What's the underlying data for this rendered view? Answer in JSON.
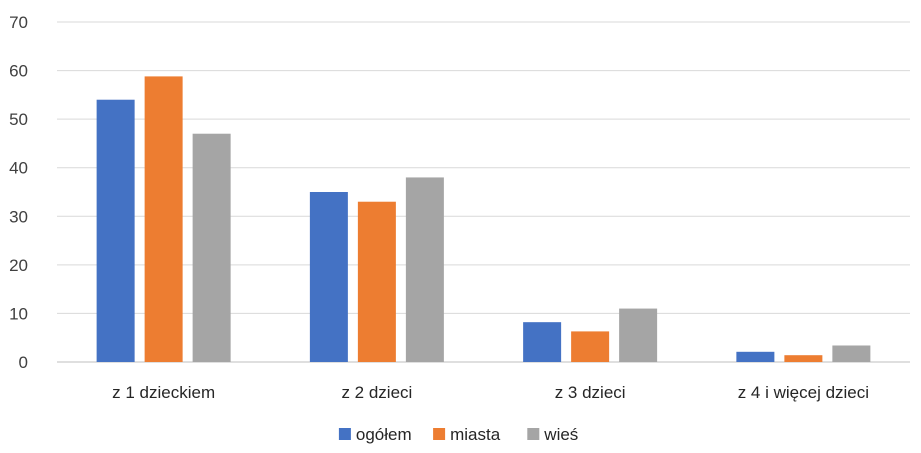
{
  "chart_data": {
    "type": "bar",
    "categories": [
      "z 1 dzieckiem",
      "z 2 dzieci",
      "z 3 dzieci",
      "z 4 i więcej dzieci"
    ],
    "series": [
      {
        "name": "ogółem",
        "values": [
          54,
          35,
          8.2,
          2.1
        ],
        "color": "#4472C4"
      },
      {
        "name": "miasta",
        "values": [
          58.8,
          33,
          6.3,
          1.4
        ],
        "color": "#ED7D31"
      },
      {
        "name": "wieś",
        "values": [
          47,
          38,
          11,
          3.4
        ],
        "color": "#A5A5A5"
      }
    ],
    "ylim": [
      0,
      70
    ],
    "yticks": [
      0,
      10,
      20,
      30,
      40,
      50,
      60,
      70
    ],
    "grid": true,
    "legend_position": "bottom",
    "gridline_color": "#D9D9D9",
    "axis_color": "#BFBFBF"
  }
}
